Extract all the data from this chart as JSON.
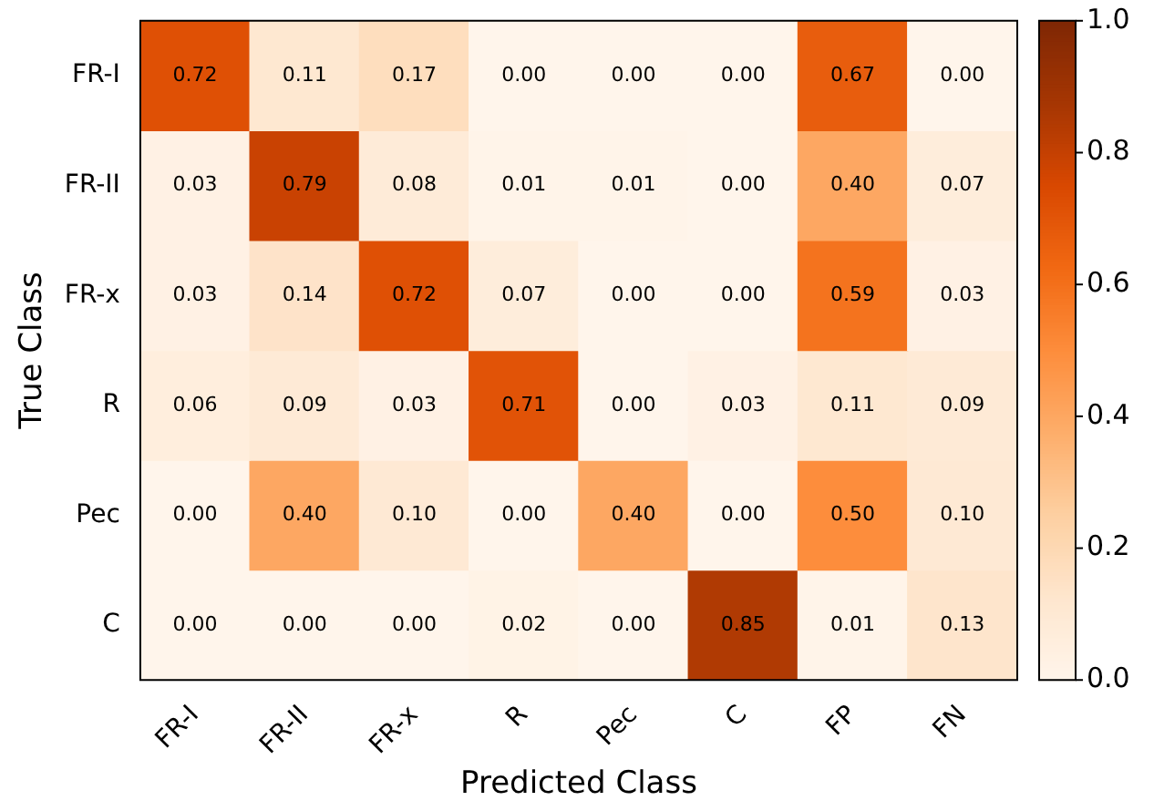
{
  "chart_data": {
    "type": "heatmap",
    "xlabel": "Predicted Class",
    "ylabel": "True Class",
    "categories": [
      "FR-I",
      "FR-II",
      "FR-x",
      "R",
      "Pec",
      "C",
      "FP",
      "FN"
    ],
    "y_categories": [
      "FR-I",
      "FR-II",
      "FR-x",
      "R",
      "Pec",
      "C"
    ],
    "cells": [
      [
        0.72,
        0.11,
        0.17,
        0.0,
        0.0,
        0.0,
        0.67,
        0.0
      ],
      [
        0.03,
        0.79,
        0.08,
        0.01,
        0.01,
        0.0,
        0.4,
        0.07
      ],
      [
        0.03,
        0.14,
        0.72,
        0.07,
        0.0,
        0.0,
        0.59,
        0.03
      ],
      [
        0.06,
        0.09,
        0.03,
        0.71,
        0.0,
        0.03,
        0.11,
        0.09
      ],
      [
        0.0,
        0.4,
        0.1,
        0.0,
        0.4,
        0.0,
        0.5,
        0.1
      ],
      [
        0.0,
        0.0,
        0.0,
        0.02,
        0.0,
        0.85,
        0.01,
        0.13
      ]
    ],
    "cell_labels": [
      [
        "0.72",
        "0.11",
        "0.17",
        "0.00",
        "0.00",
        "0.00",
        "0.67",
        "0.00"
      ],
      [
        "0.03",
        "0.79",
        "0.08",
        "0.01",
        "0.01",
        "0.00",
        "0.40",
        "0.07"
      ],
      [
        "0.03",
        "0.14",
        "0.72",
        "0.07",
        "0.00",
        "0.00",
        "0.59",
        "0.03"
      ],
      [
        "0.06",
        "0.09",
        "0.03",
        "0.71",
        "0.00",
        "0.03",
        "0.11",
        "0.09"
      ],
      [
        "0.00",
        "0.40",
        "0.10",
        "0.00",
        "0.40",
        "0.00",
        "0.50",
        "0.10"
      ],
      [
        "0.00",
        "0.00",
        "0.00",
        "0.02",
        "0.00",
        "0.85",
        "0.01",
        "0.13"
      ]
    ],
    "clim": [
      0.0,
      1.0
    ],
    "cticks": [
      {
        "value": 0,
        "label": "0.0"
      },
      {
        "value": 0.2,
        "label": "0.2"
      },
      {
        "value": 0.4,
        "label": "0.4"
      },
      {
        "value": 0.6,
        "label": "0.6"
      },
      {
        "value": 0.8,
        "label": "0.8"
      },
      {
        "value": 1,
        "label": "1.0"
      }
    ],
    "data_labels": true
  }
}
